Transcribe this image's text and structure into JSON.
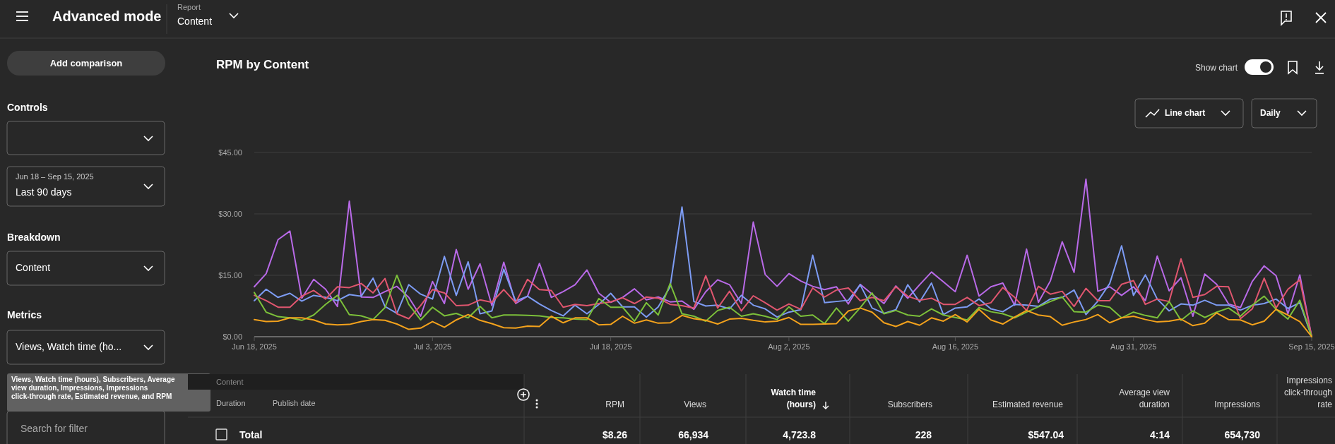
{
  "chart_data": {
    "type": "line",
    "title": "RPM by Content",
    "x": [
      "2025-06-18",
      "2025-06-19",
      "2025-06-20",
      "2025-06-21",
      "2025-06-22",
      "2025-06-23",
      "2025-06-24",
      "2025-06-25",
      "2025-06-26",
      "2025-06-27",
      "2025-06-28",
      "2025-06-29",
      "2025-06-30",
      "2025-07-01",
      "2025-07-02",
      "2025-07-03",
      "2025-07-04",
      "2025-07-05",
      "2025-07-06",
      "2025-07-07",
      "2025-07-08",
      "2025-07-09",
      "2025-07-10",
      "2025-07-11",
      "2025-07-12",
      "2025-07-13",
      "2025-07-14",
      "2025-07-15",
      "2025-07-16",
      "2025-07-17",
      "2025-07-18",
      "2025-07-19",
      "2025-07-20",
      "2025-07-21",
      "2025-07-22",
      "2025-07-23",
      "2025-07-24",
      "2025-07-25",
      "2025-07-26",
      "2025-07-27",
      "2025-07-28",
      "2025-07-29",
      "2025-07-30",
      "2025-07-31",
      "2025-08-01",
      "2025-08-02",
      "2025-08-03",
      "2025-08-04",
      "2025-08-05",
      "2025-08-06",
      "2025-08-07",
      "2025-08-08",
      "2025-08-09",
      "2025-08-10",
      "2025-08-11",
      "2025-08-12",
      "2025-08-13",
      "2025-08-14",
      "2025-08-15",
      "2025-08-16",
      "2025-08-17",
      "2025-08-18",
      "2025-08-19",
      "2025-08-20",
      "2025-08-21",
      "2025-08-22",
      "2025-08-23",
      "2025-08-24",
      "2025-08-25",
      "2025-08-26",
      "2025-08-27",
      "2025-08-28",
      "2025-08-29",
      "2025-08-30",
      "2025-08-31",
      "2025-09-01",
      "2025-09-02",
      "2025-09-03",
      "2025-09-04",
      "2025-09-05",
      "2025-09-06",
      "2025-09-07",
      "2025-09-08",
      "2025-09-09",
      "2025-09-10",
      "2025-09-11",
      "2025-09-12",
      "2025-09-13",
      "2025-09-14",
      "2025-09-15"
    ],
    "series": [
      {
        "color": "#b96ae8",
        "values": [
          12.2,
          15.4,
          23.7,
          25.8,
          9.4,
          14.0,
          11.6,
          7.4,
          33.1,
          9.7,
          9.6,
          11.0,
          12.3,
          9.6,
          5.0,
          13.5,
          8.1,
          21.3,
          11.6,
          17.8,
          7.6,
          18.2,
          8.1,
          9.9,
          17.9,
          9.6,
          11.0,
          12.7,
          16.3,
          10.6,
          8.4,
          9.6,
          11.7,
          9.0,
          9.7,
          8.5,
          8.7,
          6.7,
          11.0,
          13.9,
          12.7,
          8.1,
          28.0,
          15.2,
          12.3,
          15.4,
          13.6,
          12.3,
          11.5,
          12.2,
          8.0,
          12.8,
          10.4,
          8.1,
          12.4,
          9.4,
          12.7,
          15.8,
          13.4,
          11.0,
          19.9,
          9.9,
          12.2,
          13.1,
          7.7,
          21.4,
          8.4,
          13.6,
          23.2,
          15.7,
          38.5,
          11.1,
          12.2,
          10.1,
          12.2,
          8.8,
          19.7,
          11.2,
          14.4,
          5.0,
          15.3,
          12.8,
          8.0,
          7.1,
          13.5,
          17.3,
          14.9,
          5.6,
          15.1,
          0
        ]
      },
      {
        "color": "#7d9cf4",
        "values": [
          8.8,
          11.6,
          9.6,
          10.6,
          8.7,
          10.1,
          9.6,
          8.8,
          10.3,
          9.9,
          14.3,
          7.4,
          5.7,
          12.7,
          10.4,
          9.2,
          19.6,
          10.1,
          18.3,
          5.6,
          6.3,
          16.5,
          8.7,
          9.9,
          8.0,
          6.4,
          5.1,
          7.7,
          5.6,
          7.9,
          10.6,
          7.3,
          7.3,
          4.8,
          7.3,
          12.2,
          31.7,
          8.6,
          7.5,
          7.7,
          6.8,
          10.1,
          7.7,
          6.8,
          4.8,
          6.0,
          6.6,
          19.9,
          8.3,
          8.6,
          8.9,
          12.7,
          7.0,
          5.7,
          6.6,
          12.7,
          8.5,
          13.1,
          5.4,
          7.0,
          7.3,
          9.2,
          6.8,
          6.1,
          7.9,
          7.7,
          7.4,
          9.2,
          9.6,
          11.4,
          5.4,
          8.7,
          13.0,
          22.2,
          10.1,
          15.1,
          9.2,
          6.3,
          8.0,
          7.7,
          8.9,
          7.7,
          7.7,
          6.5,
          7.7,
          8.1,
          9.2,
          6.9,
          8.3,
          0
        ]
      },
      {
        "color": "#e0566f",
        "values": [
          10.1,
          8.8,
          7.2,
          7.2,
          9.9,
          11.3,
          9.2,
          12.2,
          12.0,
          13.0,
          10.7,
          14.2,
          5.6,
          4.4,
          7.6,
          11.5,
          10.7,
          7.6,
          7.7,
          9.0,
          8.4,
          11.5,
          8.3,
          14.0,
          11.5,
          11.3,
          7.2,
          7.9,
          7.6,
          8.1,
          8.5,
          9.5,
          8.1,
          9.7,
          9.4,
          7.9,
          7.6,
          7.0,
          14.9,
          7.0,
          11.1,
          6.3,
          10.0,
          8.3,
          6.5,
          8.0,
          6.7,
          11.9,
          9.7,
          11.4,
          11.9,
          8.8,
          9.6,
          8.8,
          12.2,
          9.9,
          8.9,
          9.4,
          7.9,
          7.9,
          9.6,
          7.6,
          8.3,
          12.0,
          9.6,
          6.4,
          12.3,
          10.4,
          11.1,
          7.4,
          11.8,
          8.8,
          8.8,
          12.8,
          13.7,
          7.9,
          9.2,
          8.6,
          19.0,
          9.6,
          10.3,
          12.3,
          12.2,
          4.4,
          6.8,
          14.3,
          7.0,
          11.6,
          13.9,
          0
        ]
      },
      {
        "color": "#7cc03a",
        "values": [
          10.8,
          6.0,
          4.9,
          4.6,
          4.0,
          5.3,
          7.9,
          10.1,
          5.4,
          5.1,
          4.2,
          7.1,
          15.0,
          7.9,
          4.1,
          7.2,
          5.1,
          5.7,
          4.6,
          7.4,
          4.6,
          5.3,
          5.3,
          5.2,
          5.1,
          4.7,
          4.6,
          4.3,
          4.2,
          9.3,
          7.2,
          7.2,
          3.8,
          8.3,
          5.3,
          13.0,
          5.6,
          5.0,
          3.8,
          6.4,
          7.2,
          5.0,
          5.6,
          5.0,
          4.2,
          7.3,
          5.0,
          5.3,
          3.2,
          7.0,
          3.8,
          7.1,
          10.7,
          5.6,
          6.4,
          5.3,
          5.0,
          6.8,
          5.3,
          4.7,
          4.1,
          7.1,
          6.1,
          5.6,
          4.6,
          6.0,
          7.3,
          8.6,
          9.7,
          6.1,
          6.0,
          7.7,
          7.2,
          4.6,
          6.0,
          5.2,
          4.6,
          8.6,
          4.0,
          6.3,
          4.7,
          6.0,
          7.0,
          5.0,
          7.7,
          9.9,
          6.7,
          4.3,
          8.9,
          0
        ]
      },
      {
        "color": "#f4a21c",
        "values": [
          4.2,
          3.7,
          3.8,
          4.6,
          4.6,
          4.1,
          3.1,
          2.9,
          3.0,
          3.7,
          4.2,
          4.0,
          3.1,
          1.8,
          2.1,
          3.7,
          2.3,
          4.1,
          5.4,
          4.0,
          3.2,
          2.2,
          2.1,
          2.6,
          2.5,
          5.0,
          3.4,
          4.6,
          4.6,
          2.9,
          3.0,
          5.0,
          3.3,
          4.1,
          3.3,
          3.4,
          5.2,
          4.4,
          4.0,
          3.1,
          4.3,
          4.5,
          4.0,
          3.6,
          3.8,
          4.7,
          3.0,
          3.0,
          3.1,
          3.2,
          6.3,
          7.0,
          6.0,
          3.4,
          2.5,
          3.7,
          2.8,
          4.6,
          3.8,
          5.4,
          3.6,
          6.7,
          4.1,
          3.1,
          4.8,
          6.4,
          5.3,
          4.9,
          2.8,
          3.6,
          4.2,
          5.4,
          3.4,
          4.6,
          5.0,
          4.2,
          3.6,
          3.8,
          4.3,
          2.7,
          3.3,
          5.8,
          4.2,
          4.1,
          2.9,
          3.8,
          6.7,
          5.3,
          3.7,
          0
        ]
      }
    ],
    "xlim": [
      "2025-06-18",
      "2025-09-15"
    ],
    "xticks": [
      {
        "value": "2025-06-18",
        "label": "Jun 18, 2025"
      },
      {
        "value": "2025-07-03",
        "label": "Jul 3, 2025"
      },
      {
        "value": "2025-07-18",
        "label": "Jul 18, 2025"
      },
      {
        "value": "2025-08-02",
        "label": "Aug 2, 2025"
      },
      {
        "value": "2025-08-16",
        "label": "Aug 16, 2025"
      },
      {
        "value": "2025-08-31",
        "label": "Aug 31, 2025"
      },
      {
        "value": "2025-09-15",
        "label": "Sep 15, 2025"
      }
    ],
    "ylim": [
      0,
      45
    ],
    "yticks": [
      {
        "value": 0,
        "label": "$0.00"
      },
      {
        "value": 15,
        "label": "$15.00"
      },
      {
        "value": 30,
        "label": "$30.00"
      },
      {
        "value": 45,
        "label": "$45.00"
      }
    ],
    "grid": "y",
    "marker": "none",
    "line_style": "solid",
    "annotations": [
      "Advanced mode",
      "Report",
      "Content",
      "Add comparison",
      "Controls",
      "Jun 18 – Sep 15, 2025",
      "Last 90 days",
      "Breakdown",
      "Content",
      "Metrics",
      "Views, Watch time (ho...",
      "Views, Watch time (hours), Subscribers, Average view duration, Impressions, Impressions click-through rate, Estimated revenue, and RPM",
      "Search for filter",
      "Show chart",
      "Line chart",
      "Daily",
      "Content",
      "Duration",
      "Publish date",
      "RPM",
      "Views",
      "Watch time (hours)",
      "Subscribers",
      "Estimated revenue",
      "Average view duration",
      "Impressions",
      "Impressions click-through rate",
      "Total",
      "$8.26",
      "66,934",
      "4,723.8",
      "228",
      "$547.04",
      "4:14",
      "654,730"
    ]
  }
}
